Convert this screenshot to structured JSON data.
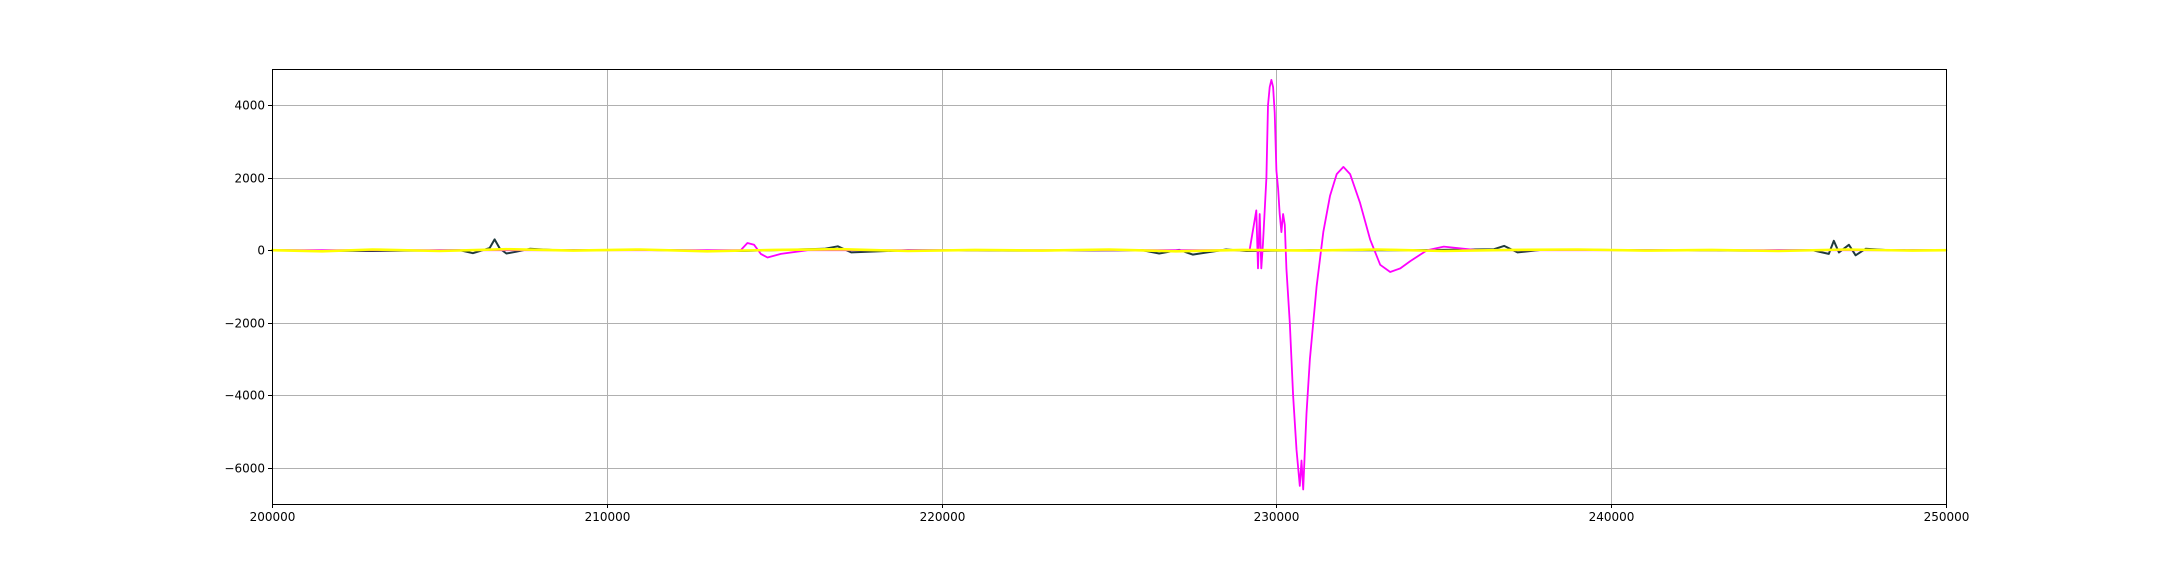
{
  "chart_data": {
    "type": "line",
    "title": "",
    "xlabel": "",
    "ylabel": "",
    "xlim": [
      200000,
      250000
    ],
    "ylim": [
      -7000,
      5000
    ],
    "grid": true,
    "legend": "none",
    "x_ticks": [
      200000,
      210000,
      220000,
      230000,
      240000,
      250000
    ],
    "x_tick_labels": [
      "200000",
      "210000",
      "220000",
      "230000",
      "240000",
      "250000"
    ],
    "y_ticks": [
      4000,
      2000,
      0,
      -2000,
      -4000,
      -6000
    ],
    "y_tick_labels": [
      "4000",
      "2000",
      "0",
      "−2000",
      "−4000",
      "−6000"
    ],
    "series": [
      {
        "color": "#1f3a3d",
        "x": [
          200000,
          203000,
          205600,
          206000,
          206500,
          206650,
          206800,
          207000,
          207300,
          207700,
          208500,
          211000,
          214000,
          216500,
          216900,
          217300,
          219000,
          222000,
          226000,
          226500,
          227100,
          227500,
          228500,
          229100,
          231000,
          234000,
          236500,
          236800,
          237200,
          238000,
          241000,
          244000,
          246000,
          246500,
          246650,
          246800,
          247100,
          247300,
          247600,
          248300,
          250000
        ],
        "values": [
          0,
          -20,
          0,
          -80,
          60,
          300,
          50,
          -90,
          -40,
          40,
          0,
          10,
          -20,
          40,
          110,
          -60,
          0,
          -10,
          0,
          -90,
          10,
          -120,
          20,
          -20,
          0,
          0,
          30,
          120,
          -60,
          20,
          0,
          -10,
          0,
          -100,
          260,
          -60,
          150,
          -140,
          40,
          0,
          0
        ]
      },
      {
        "color": "#ff00ff",
        "x": [
          200000,
          214000,
          214200,
          214400,
          214600,
          214800,
          215200,
          216000,
          228000,
          229200,
          229400,
          229450,
          229500,
          229550,
          229600,
          229700,
          229750,
          229800,
          229850,
          229900,
          229950,
          230000,
          230050,
          230100,
          230150,
          230200,
          230250,
          230300,
          230400,
          230500,
          230600,
          230700,
          230750,
          230800,
          230850,
          230900,
          231000,
          231200,
          231400,
          231600,
          231800,
          232000,
          232200,
          232500,
          232800,
          233100,
          233400,
          233700,
          234000,
          234500,
          235000,
          235500,
          236000,
          237000,
          240000,
          250000
        ],
        "values": [
          0,
          0,
          200,
          150,
          -100,
          -200,
          -100,
          0,
          0,
          0,
          1100,
          -500,
          1000,
          -500,
          200,
          2000,
          4000,
          4500,
          4700,
          4500,
          3800,
          2200,
          1700,
          1000,
          500,
          1000,
          700,
          -500,
          -2000,
          -4000,
          -5500,
          -6500,
          -5800,
          -6600,
          -5500,
          -4500,
          -3000,
          -1000,
          500,
          1500,
          2100,
          2300,
          2100,
          1300,
          300,
          -400,
          -600,
          -500,
          -300,
          0,
          100,
          50,
          0,
          0,
          0,
          0
        ]
      },
      {
        "color": "#ffff00",
        "x": [
          200000,
          201500,
          203000,
          205000,
          207000,
          209000,
          211000,
          213000,
          215000,
          217000,
          219000,
          221000,
          223000,
          225000,
          227000,
          229000,
          231000,
          233000,
          235000,
          237000,
          239000,
          241000,
          243000,
          245000,
          247000,
          249000,
          250000
        ],
        "values": [
          0,
          -30,
          20,
          -20,
          30,
          -10,
          20,
          -30,
          10,
          30,
          -20,
          10,
          -10,
          20,
          -30,
          10,
          -10,
          20,
          -20,
          10,
          20,
          -10,
          10,
          -20,
          20,
          -10,
          0
        ]
      }
    ]
  }
}
